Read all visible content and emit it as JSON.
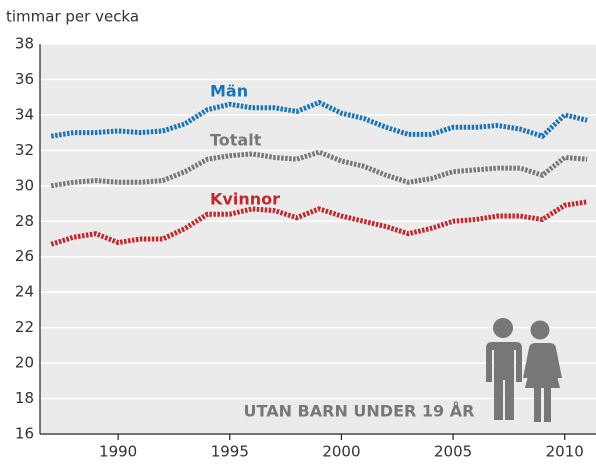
{
  "chart_data": {
    "type": "line",
    "y_label": "timmar per vecka",
    "annotation": "UTAN BARN UNDER 19 ÅR",
    "x": [
      1987,
      1988,
      1989,
      1990,
      1991,
      1992,
      1993,
      1994,
      1995,
      1996,
      1997,
      1998,
      1999,
      2000,
      2001,
      2002,
      2003,
      2004,
      2005,
      2006,
      2007,
      2008,
      2009,
      2010,
      2011
    ],
    "series": [
      {
        "name": "Män",
        "color": "#1a74b8",
        "values": [
          32.8,
          33.0,
          33.0,
          33.1,
          33.0,
          33.1,
          33.5,
          34.3,
          34.6,
          34.4,
          34.4,
          34.2,
          34.7,
          34.1,
          33.8,
          33.3,
          32.9,
          32.9,
          33.3,
          33.3,
          33.4,
          33.2,
          32.8,
          34.0,
          33.7
        ]
      },
      {
        "name": "Totalt",
        "color": "#777777",
        "values": [
          30.0,
          30.2,
          30.3,
          30.2,
          30.2,
          30.3,
          30.8,
          31.5,
          31.7,
          31.8,
          31.6,
          31.5,
          31.9,
          31.4,
          31.1,
          30.6,
          30.2,
          30.4,
          30.8,
          30.9,
          31.0,
          31.0,
          30.6,
          31.6,
          31.5
        ]
      },
      {
        "name": "Kvinnor",
        "color": "#c0282d",
        "values": [
          26.7,
          27.1,
          27.3,
          26.8,
          27.0,
          27.0,
          27.6,
          28.4,
          28.4,
          28.7,
          28.6,
          28.2,
          28.7,
          28.3,
          28.0,
          27.7,
          27.3,
          27.6,
          28.0,
          28.1,
          28.3,
          28.3,
          28.1,
          28.9,
          29.1
        ]
      }
    ],
    "xlim": [
      1986.5,
      2011.4
    ],
    "xticks": [
      1990,
      1995,
      2000,
      2005,
      2010
    ],
    "ylim": [
      16,
      38
    ],
    "yticks": [
      16,
      18,
      20,
      22,
      24,
      26,
      28,
      30,
      32,
      34,
      36,
      38
    ],
    "grid": true
  }
}
